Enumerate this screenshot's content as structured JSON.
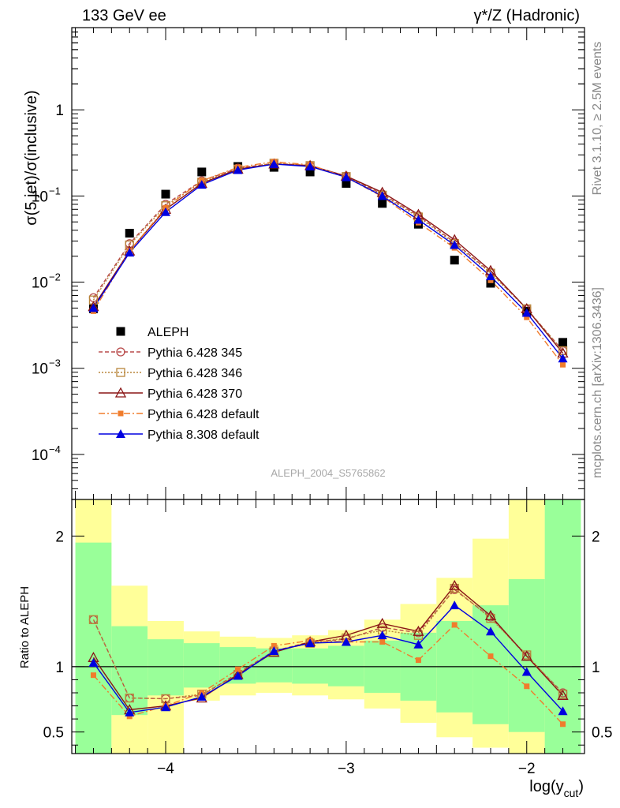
{
  "header": {
    "left": "133 GeV ee",
    "right_prefix": "γ*/Z (Hadronic)"
  },
  "side_text": {
    "top": "Rivet 3.1.10, ≥ 2.5M events",
    "bottom": "mcplots.cern.ch [arXiv:1306.3436]"
  },
  "colors": {
    "data": "#000000",
    "p345": "#b84a4a",
    "p346": "#b8863b",
    "p370": "#8a1616",
    "p6def": "#f07c2c",
    "p8def": "#0000e0",
    "band_inner": "#99ff99",
    "band_outer": "#ffff99"
  },
  "chart_data": [
    {
      "type": "line",
      "panel": "main",
      "ylabel": "σ(5 jet)/σ(inclusive)",
      "yscale": "log",
      "ylim": [
        3e-05,
        9
      ],
      "xlim": [
        -4.52,
        -1.68
      ],
      "ytick_labels": [
        "1",
        "10^-1",
        "10^-2",
        "10^-3",
        "10^-4"
      ],
      "analysis_label": "ALEPH_2004_S5765862",
      "legend_position": "middle-left",
      "x": [
        -4.4,
        -4.2,
        -4.0,
        -3.8,
        -3.6,
        -3.4,
        -3.2,
        -3.0,
        -2.8,
        -2.6,
        -2.4,
        -2.2,
        -2.0,
        -1.8
      ],
      "series": [
        {
          "name": "ALEPH",
          "key": "data",
          "marker": "square-filled",
          "values": [
            0.0049,
            0.037,
            0.105,
            0.19,
            0.22,
            0.215,
            0.19,
            0.14,
            0.082,
            0.047,
            0.018,
            0.0097,
            0.0046,
            0.002
          ]
        },
        {
          "name": "Pythia 6.428 345",
          "key": "p345",
          "marker": "circle-open",
          "dash": "5,3",
          "values": [
            0.0066,
            0.028,
            0.08,
            0.15,
            0.21,
            0.24,
            0.225,
            0.17,
            0.105,
            0.059,
            0.029,
            0.013,
            0.0049,
            0.0016
          ]
        },
        {
          "name": "Pythia 6.428 346",
          "key": "p346",
          "marker": "square-open",
          "dash": "2,2",
          "values": [
            0.0062,
            0.027,
            0.077,
            0.145,
            0.205,
            0.24,
            0.225,
            0.168,
            0.102,
            0.057,
            0.028,
            0.0127,
            0.0049,
            0.0016
          ]
        },
        {
          "name": "Pythia 6.428 370",
          "key": "p370",
          "marker": "triangle-open",
          "dash": "",
          "values": [
            0.0052,
            0.023,
            0.07,
            0.14,
            0.205,
            0.235,
            0.225,
            0.17,
            0.11,
            0.061,
            0.031,
            0.0136,
            0.0049,
            0.0015
          ]
        },
        {
          "name": "Pythia 6.428 default",
          "key": "p6def",
          "marker": "square-filled-small",
          "dash": "8,3,2,3",
          "values": [
            0.0046,
            0.023,
            0.073,
            0.15,
            0.215,
            0.25,
            0.23,
            0.165,
            0.098,
            0.049,
            0.025,
            0.0105,
            0.0039,
            0.0011
          ]
        },
        {
          "name": "Pythia 8.308 default",
          "key": "p8def",
          "marker": "triangle-filled",
          "dash": "",
          "values": [
            0.005,
            0.022,
            0.065,
            0.135,
            0.2,
            0.235,
            0.22,
            0.165,
            0.1,
            0.053,
            0.027,
            0.0117,
            0.0044,
            0.0013
          ]
        }
      ]
    },
    {
      "type": "line",
      "panel": "ratio",
      "ylabel": "Ratio to ALEPH",
      "xlabel": "log(y_cut)",
      "ylim": [
        0.335,
        2.28
      ],
      "xlim": [
        -4.52,
        -1.68
      ],
      "ytick_labels": [
        "0.5",
        "1",
        "2"
      ],
      "xtick_labels": [
        "−4",
        "−3",
        "−2"
      ],
      "bins": [
        -4.5,
        -4.3,
        -4.1,
        -3.9,
        -3.7,
        -3.5,
        -3.3,
        -3.1,
        -2.9,
        -2.7,
        -2.5,
        -2.3,
        -2.1,
        -1.9,
        -1.7
      ],
      "band_inner": {
        "low": [
          0.335,
          0.63,
          0.78,
          0.84,
          0.87,
          0.88,
          0.87,
          0.85,
          0.8,
          0.74,
          0.65,
          0.56,
          0.5,
          0.335
        ],
        "high": [
          1.95,
          1.31,
          1.21,
          1.18,
          1.15,
          1.14,
          1.14,
          1.16,
          1.2,
          1.26,
          1.35,
          1.47,
          1.67,
          2.28
        ]
      },
      "band_outer": {
        "low": [
          0.335,
          0.335,
          0.335,
          0.74,
          0.78,
          0.8,
          0.78,
          0.75,
          0.68,
          0.57,
          0.46,
          0.38,
          0.335,
          0.335
        ],
        "high": [
          2.28,
          1.62,
          1.35,
          1.27,
          1.23,
          1.22,
          1.24,
          1.28,
          1.36,
          1.48,
          1.68,
          1.98,
          2.28,
          2.28
        ]
      },
      "x": [
        -4.4,
        -4.2,
        -4.0,
        -3.8,
        -3.6,
        -3.4,
        -3.2,
        -3.0,
        -2.8,
        -2.6,
        -2.4,
        -2.2,
        -2.0,
        -1.8
      ],
      "series": [
        {
          "name": "Pythia 6.428 345",
          "key": "p345",
          "values": [
            1.36,
            0.76,
            0.755,
            0.78,
            0.95,
            1.12,
            1.19,
            1.21,
            1.3,
            1.26,
            1.59,
            1.38,
            1.08,
            0.8
          ]
        },
        {
          "name": "Pythia 6.428 346",
          "key": "p346",
          "values": [
            1.36,
            0.76,
            0.755,
            0.79,
            0.94,
            1.12,
            1.18,
            1.22,
            1.28,
            1.24,
            1.6,
            1.37,
            1.09,
            0.79
          ]
        },
        {
          "name": "Pythia 6.428 370",
          "key": "p370",
          "values": [
            1.07,
            0.67,
            0.7,
            0.76,
            0.94,
            1.11,
            1.19,
            1.24,
            1.33,
            1.27,
            1.62,
            1.39,
            1.08,
            0.78
          ]
        },
        {
          "name": "Pythia 6.428 default",
          "key": "p6def",
          "values": [
            0.935,
            0.62,
            0.7,
            0.8,
            0.98,
            1.16,
            1.2,
            1.19,
            1.19,
            1.05,
            1.32,
            1.08,
            0.85,
            0.56
          ]
        },
        {
          "name": "Pythia 8.308 default",
          "key": "p8def",
          "values": [
            1.03,
            0.65,
            0.69,
            0.77,
            0.93,
            1.12,
            1.18,
            1.19,
            1.24,
            1.17,
            1.47,
            1.27,
            0.96,
            0.66
          ]
        }
      ]
    }
  ]
}
